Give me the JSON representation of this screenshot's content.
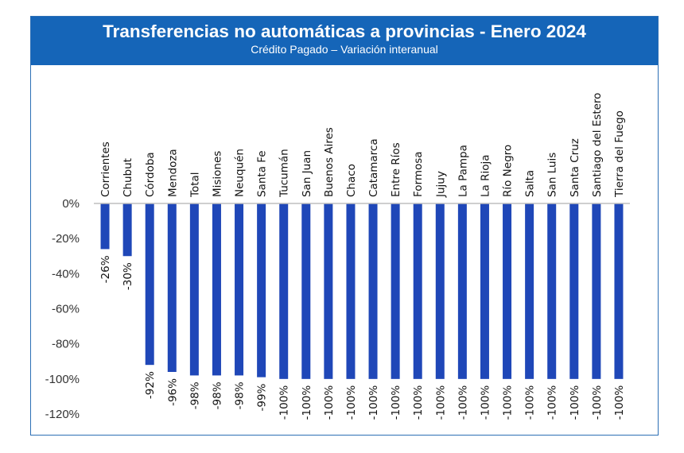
{
  "header": {
    "title": "Transferencias no automáticas a provincias - Enero 2024",
    "subtitle": "Crédito Pagado – Variación interanual"
  },
  "colors": {
    "header_bg": "#1565b8",
    "bar": "#1f47b8",
    "axis": "#bfbfbf"
  },
  "chart_data": {
    "type": "bar",
    "title": "Transferencias no automáticas a provincias - Enero 2024",
    "subtitle": "Crédito Pagado – Variación interanual",
    "categories": [
      "Corrientes",
      "Chubut",
      "Córdoba",
      "Mendoza",
      "Total",
      "Misiones",
      "Neuquén",
      "Santa Fe",
      "Tucumán",
      "San Juan",
      "Buenos Aires",
      "Chaco",
      "Catamarca",
      "Entre Ríos",
      "Formosa",
      "Jujuy",
      "La Pampa",
      "La Rioja",
      "Río Negro",
      "Salta",
      "San Luis",
      "Santa Cruz",
      "Santiago del Estero",
      "Tierra del Fuego"
    ],
    "values": [
      -26,
      -30,
      -92,
      -96,
      -98,
      -98,
      -98,
      -99,
      -100,
      -100,
      -100,
      -100,
      -100,
      -100,
      -100,
      -100,
      -100,
      -100,
      -100,
      -100,
      -100,
      -100,
      -100,
      -100
    ],
    "data_labels": [
      "-26%",
      "-30%",
      "-92%",
      "-96%",
      "-98%",
      "-98%",
      "-98%",
      "-99%",
      "-100%",
      "-100%",
      "-100%",
      "-100%",
      "-100%",
      "-100%",
      "-100%",
      "-100%",
      "-100%",
      "-100%",
      "-100%",
      "-100%",
      "-100%",
      "-100%",
      "-100%",
      "-100%"
    ],
    "y_ticks": [
      "0%",
      "-20%",
      "-40%",
      "-60%",
      "-80%",
      "-100%",
      "-120%"
    ],
    "y_tick_values": [
      0,
      -20,
      -40,
      -60,
      -80,
      -100,
      -120
    ],
    "ylim": [
      -120,
      0
    ],
    "xlabel": "",
    "ylabel": "",
    "grid": false,
    "legend": "none"
  }
}
